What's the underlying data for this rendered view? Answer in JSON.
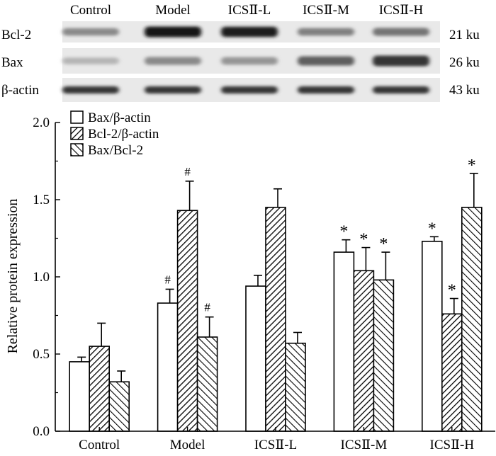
{
  "blot": {
    "lane_labels": [
      "Control",
      "Model",
      "ICSⅡ-L",
      "ICSⅡ-M",
      "ICSⅡ-H"
    ],
    "rows": [
      {
        "protein": "Bcl-2",
        "size": "21 ku",
        "intensity": [
          0.45,
          1.0,
          0.95,
          0.5,
          0.55
        ]
      },
      {
        "protein": "Bax",
        "size": "26 ku",
        "intensity": [
          0.25,
          0.45,
          0.4,
          0.65,
          0.85
        ]
      },
      {
        "protein": "β-actin",
        "size": "43 ku",
        "intensity": [
          0.85,
          0.85,
          0.85,
          0.85,
          0.85
        ]
      }
    ]
  },
  "chart_data": {
    "type": "bar",
    "title": "",
    "xlabel": "",
    "ylabel": "Relative protein expression",
    "ylim": [
      0,
      2.0
    ],
    "yticks": [
      "0.0",
      "0.5",
      "1.0",
      "1.5",
      "2.0"
    ],
    "categories": [
      "Control",
      "Model",
      "ICSⅡ-L",
      "ICSⅡ-M",
      "ICSⅡ-H"
    ],
    "legend_position": "top-left",
    "series": [
      {
        "name": "Bax/β-actin",
        "pattern": "open",
        "values": [
          0.45,
          0.83,
          0.94,
          1.16,
          1.23
        ],
        "errors": [
          0.03,
          0.09,
          0.07,
          0.08,
          0.03
        ],
        "annotations": [
          "",
          "#",
          "",
          "*",
          "*"
        ]
      },
      {
        "name": "Bcl-2/β-actin",
        "pattern": "dense-hatch",
        "values": [
          0.55,
          1.43,
          1.45,
          1.04,
          0.76
        ],
        "errors": [
          0.15,
          0.19,
          0.12,
          0.15,
          0.1
        ],
        "annotations": [
          "",
          "#",
          "",
          "*",
          "*"
        ]
      },
      {
        "name": "Bax/Bcl-2",
        "pattern": "sparse-hatch",
        "values": [
          0.32,
          0.61,
          0.57,
          0.98,
          1.45
        ],
        "errors": [
          0.07,
          0.13,
          0.07,
          0.18,
          0.22
        ],
        "annotations": [
          "",
          "#",
          "",
          "*",
          "*"
        ]
      }
    ]
  }
}
